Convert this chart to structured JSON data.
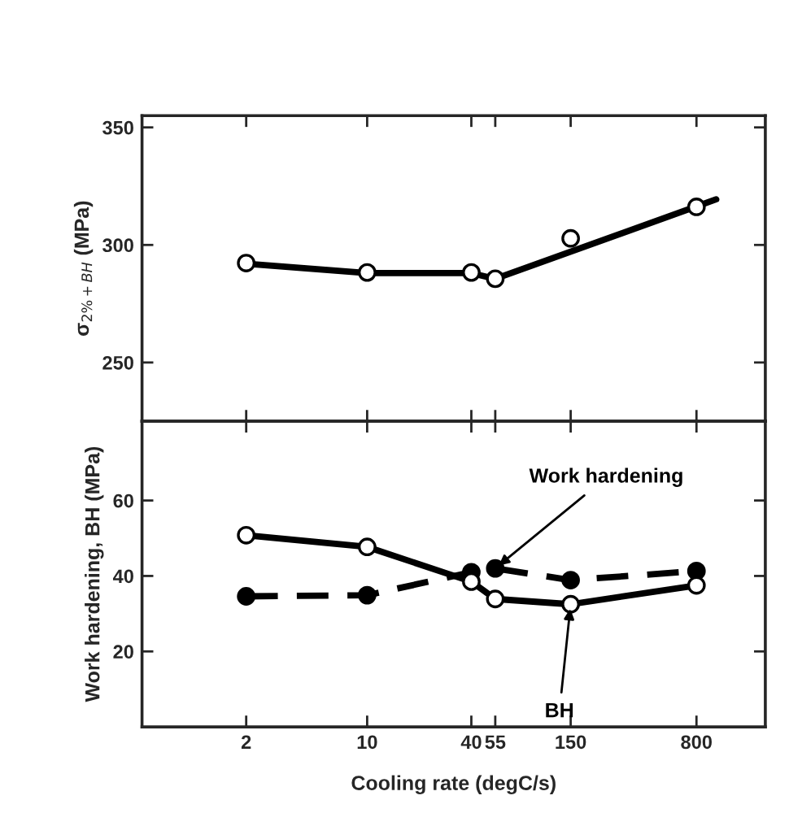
{
  "chart_data": [
    {
      "type": "line",
      "ylabel": "σ$_{2%+BH}$ (MPa)",
      "x": [
        2,
        10,
        40,
        55,
        150,
        800
      ],
      "xlim": [
        0.5,
        2000
      ],
      "xticks": [
        2,
        10,
        40,
        55,
        150,
        800
      ],
      "ylim": [
        225,
        355
      ],
      "yticks": [
        250,
        300,
        350
      ],
      "log": "x",
      "tick_labels": "y",
      "grid": false,
      "legend": false,
      "marker": "circle",
      "series": [
        {
          "type": "scatter",
          "color": "#000000",
          "values": [
            292.3,
            288.3,
            288.3,
            285.6,
            302.8,
            316.2
          ]
        },
        {
          "type": "line",
          "color": "#000000",
          "line_style": "solid",
          "marker": "none",
          "x": [
            2,
            10,
            40,
            55,
            1040
          ],
          "values": [
            292.0,
            288.0,
            288.0,
            285.6,
            319.4
          ]
        }
      ]
    },
    {
      "type": "line",
      "xlabel": "Cooling rate (degC/s)",
      "ylabel": "Work hardening, BH (MPa)",
      "x": [
        2,
        10,
        40,
        55,
        150,
        800
      ],
      "xlim": [
        0.5,
        2000
      ],
      "xticks": [
        2,
        10,
        40,
        55,
        150,
        800
      ],
      "ylim": [
        0,
        81
      ],
      "yticks": [
        20,
        40,
        60
      ],
      "log": "x",
      "grid": false,
      "legend": false,
      "marker": "circle",
      "series": [
        {
          "name": "Work hardening",
          "color": "#000000",
          "line_style": "dashed",
          "values": [
            34.6,
            34.9,
            41.0,
            42.0,
            38.9,
            41.3
          ]
        },
        {
          "name": "BH",
          "color": "#000000",
          "line_style": "solid",
          "values": [
            50.8,
            47.7,
            38.5,
            33.9,
            32.5,
            37.5
          ]
        }
      ]
    }
  ]
}
